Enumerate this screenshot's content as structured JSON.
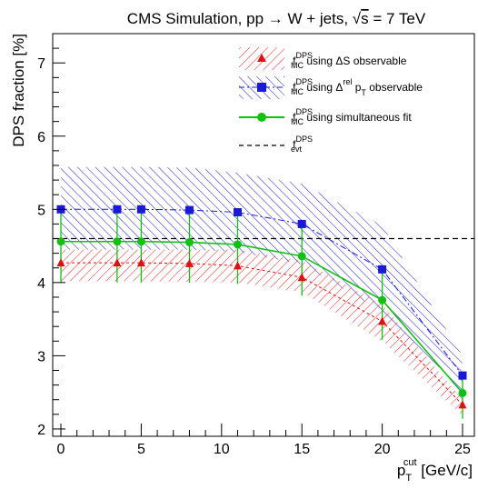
{
  "chart_data": {
    "type": "line",
    "title_main": "CMS Simulation, pp → W + jets, ",
    "title_sqrt": "s",
    "title_rest": " = 7 TeV",
    "ylabel": "DPS fraction [%]",
    "xlabel_p": "p",
    "xlabel_sub": "T",
    "xlabel_sup": "cut",
    "xlabel_unit": " [GeV/c]",
    "xlim": [
      0,
      25
    ],
    "ylim": [
      1.9,
      7.4
    ],
    "x_ticks": [
      "0",
      "5",
      "10",
      "15",
      "20",
      "25"
    ],
    "y_ticks": [
      "2",
      "3",
      "4",
      "5",
      "6",
      "7"
    ],
    "grid": false,
    "legend_position": "top-right",
    "x": [
      0,
      3.5,
      5,
      8,
      11,
      15,
      20,
      25
    ],
    "series": [
      {
        "id": "deltaS",
        "legend_f": "f",
        "legend_sup": "DPS",
        "legend_sub": "MC",
        "legend_text": " using ΔS observable",
        "color": "#dd1111",
        "marker": "triangle",
        "values": [
          4.27,
          4.27,
          4.27,
          4.26,
          4.23,
          4.07,
          3.47,
          2.33
        ],
        "band_low": [
          4.02,
          4.02,
          4.02,
          4.01,
          4.0,
          3.87,
          3.2,
          2.18
        ],
        "band_high": [
          4.45,
          4.45,
          4.45,
          4.45,
          4.45,
          4.3,
          3.7,
          2.4
        ]
      },
      {
        "id": "deltaRel",
        "legend_f": "f",
        "legend_sup": "DPS",
        "legend_sub": "MC",
        "legend_text": " using Δ",
        "legend_text_sup": "rel",
        "legend_text_p": " p",
        "legend_text_p_sub": "T",
        "legend_text_rest": " observable",
        "color": "#1a1ad6",
        "marker": "square",
        "values": [
          5.0,
          5.0,
          5.0,
          4.99,
          4.96,
          4.8,
          4.18,
          2.73
        ],
        "band_low": [
          4.45,
          4.45,
          4.45,
          4.45,
          4.42,
          4.25,
          3.6,
          2.4
        ],
        "band_high": [
          5.58,
          5.58,
          5.58,
          5.57,
          5.5,
          5.35,
          4.78,
          3.0
        ]
      },
      {
        "id": "simfit",
        "legend_f": "f",
        "legend_sup": "DPS",
        "legend_sub": "MC",
        "legend_text": " using simultaneous fit",
        "color": "#11c011",
        "marker": "circle",
        "values": [
          4.56,
          4.56,
          4.56,
          4.55,
          4.52,
          4.36,
          3.76,
          2.49
        ],
        "err_low": [
          4.0,
          4.0,
          4.0,
          4.0,
          3.98,
          3.82,
          3.22,
          2.14
        ],
        "err_high": [
          5.0,
          5.0,
          5.0,
          4.99,
          4.98,
          4.82,
          4.22,
          2.78
        ]
      }
    ],
    "reference": {
      "legend_f": "f",
      "legend_sup": "DPS",
      "legend_sub": "evt",
      "value": 4.6,
      "style": "dashed"
    }
  }
}
